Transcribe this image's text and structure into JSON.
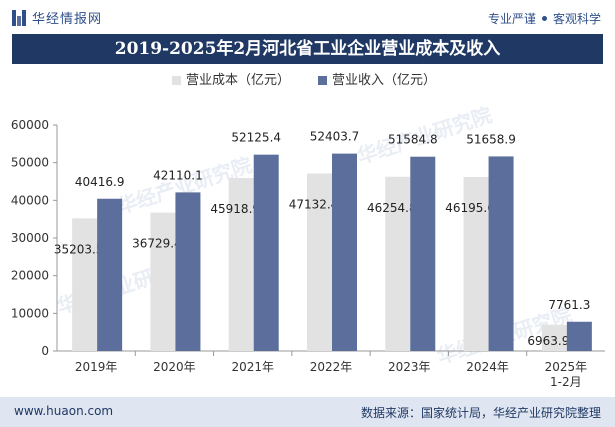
{
  "header": {
    "logo_text": "华经情报网",
    "slogan_left": "专业严谨",
    "slogan_right": "客观科学"
  },
  "chart_data": {
    "type": "bar",
    "title": "2019-2025年2月河北省工业企业营业成本及收入",
    "categories": [
      "2019年",
      "2020年",
      "2021年",
      "2022年",
      "2023年",
      "2024年",
      "2025年\n1-2月"
    ],
    "series": [
      {
        "name": "营业成本（亿元）",
        "color": "#e2e2e2",
        "values": [
          35203.5,
          36729.4,
          45918.9,
          47132.4,
          46254.8,
          46195.6,
          6963.9
        ]
      },
      {
        "name": "营业收入（亿元）",
        "color": "#5b6e9c",
        "values": [
          40416.9,
          42110.1,
          52125.4,
          52403.7,
          51584.8,
          51658.9,
          7761.3
        ]
      }
    ],
    "yticks": [
      0,
      10000,
      20000,
      30000,
      40000,
      50000,
      60000
    ],
    "ylim": [
      0,
      60000
    ],
    "legend_position": "top-center",
    "grid": false
  },
  "watermark": "华经产业研究院",
  "footer": {
    "url": "www.huaon.com",
    "source": "数据来源：国家统计局，华经产业研究院整理"
  }
}
